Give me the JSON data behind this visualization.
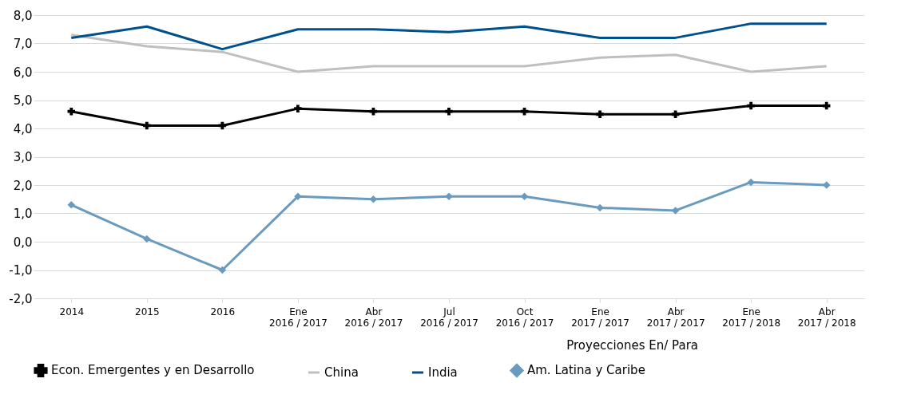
{
  "chart_data": {
    "type": "line",
    "categories": [
      "2014",
      "2015",
      "2016",
      "Ene\n2016 / 2017",
      "Abr\n2016 / 2017",
      "Jul\n2016 / 2017",
      "Oct\n2016 / 2017",
      "Ene\n2017 / 2017",
      "Abr\n2017 / 2017",
      "Ene\n2017 / 2018",
      "Abr\n2017 / 2018"
    ],
    "series": [
      {
        "name": "Econ. Emergentes y en Desarrollo",
        "color": "#000000",
        "marker": "cross",
        "values": [
          4.6,
          4.1,
          4.1,
          4.7,
          4.6,
          4.6,
          4.6,
          4.5,
          4.5,
          4.8,
          4.8
        ]
      },
      {
        "name": "China",
        "color": "#bfbfbf",
        "marker": "none",
        "values": [
          7.3,
          6.9,
          6.7,
          6.0,
          6.2,
          6.2,
          6.2,
          6.5,
          6.6,
          6.0,
          6.2
        ]
      },
      {
        "name": "India",
        "color": "#00508c",
        "marker": "none",
        "values": [
          7.2,
          7.6,
          6.8,
          7.5,
          7.5,
          7.4,
          7.6,
          7.2,
          7.2,
          7.7,
          7.7
        ]
      },
      {
        "name": "Am. Latina y Caribe",
        "color": "#6a9bbf",
        "marker": "diamond",
        "values": [
          1.3,
          0.1,
          -1.0,
          1.6,
          1.5,
          1.6,
          1.6,
          1.2,
          1.1,
          2.1,
          2.0
        ]
      }
    ],
    "ylim": [
      -2,
      8
    ],
    "yticks": [
      {
        "value": -2,
        "label": "-2,0"
      },
      {
        "value": -1,
        "label": "-1,0"
      },
      {
        "value": 0,
        "label": "0,0"
      },
      {
        "value": 1,
        "label": "1,0"
      },
      {
        "value": 2,
        "label": "2,0"
      },
      {
        "value": 3,
        "label": "3,0"
      },
      {
        "value": 4,
        "label": "4,0"
      },
      {
        "value": 5,
        "label": "5,0"
      },
      {
        "value": 6,
        "label": "6,0"
      },
      {
        "value": 7,
        "label": "7,0"
      },
      {
        "value": 8,
        "label": "8,0"
      }
    ],
    "grid": "y",
    "legend": "bottom",
    "line_style": "solid",
    "annotations": [
      "Proyecciones En/ Para"
    ]
  }
}
